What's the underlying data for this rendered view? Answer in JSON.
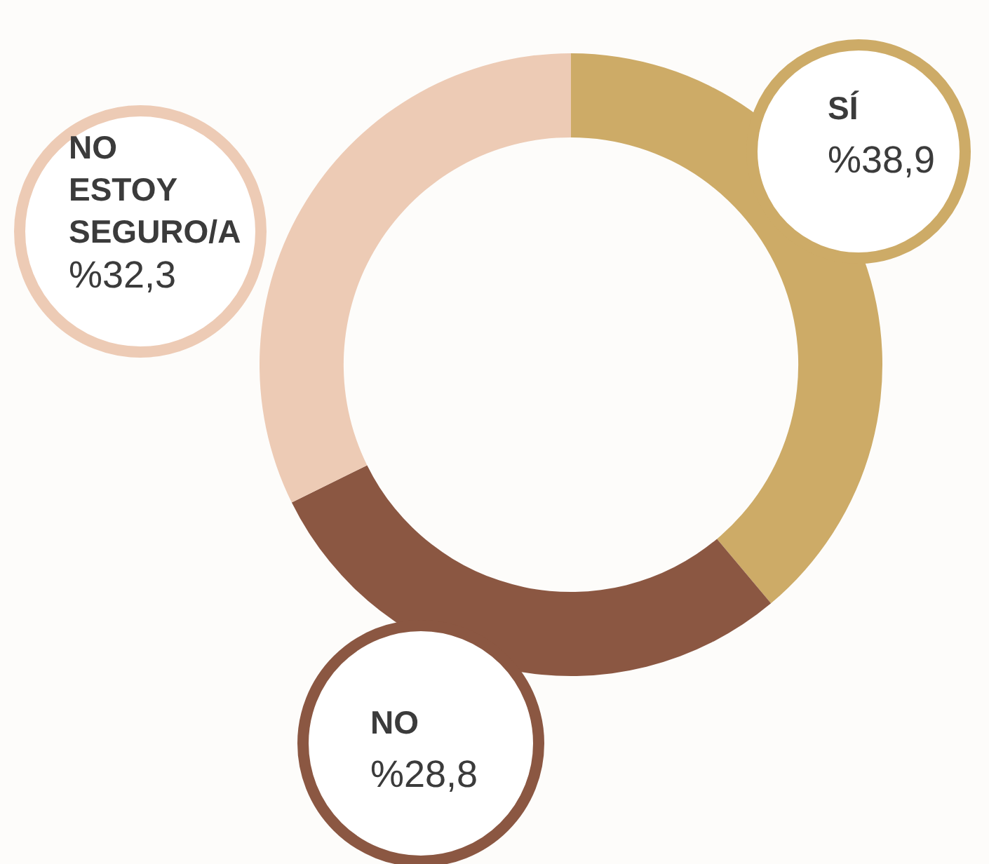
{
  "chart_data": {
    "type": "donut",
    "categories": [
      "SÍ",
      "NO",
      "NO ESTOY SEGURO/A"
    ],
    "values": [
      38.9,
      28.8,
      32.3
    ],
    "colors": [
      "#cdab67",
      "#8b5742",
      "#edcbb5"
    ],
    "value_labels": [
      "%38,9",
      "%28,8",
      "%32,3"
    ]
  }
}
